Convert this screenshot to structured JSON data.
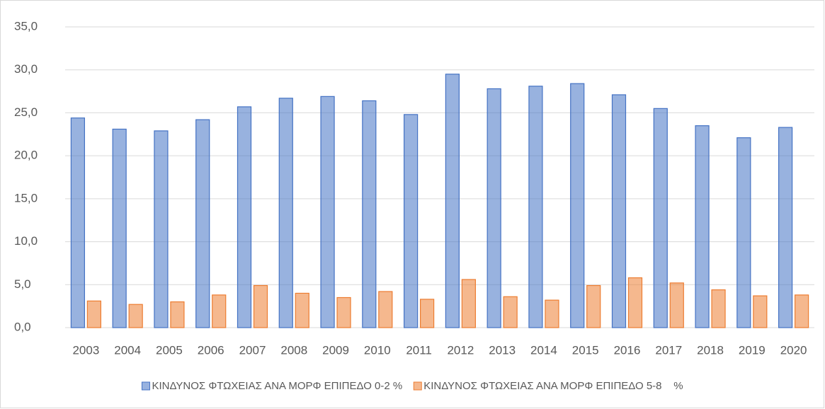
{
  "chart_data": {
    "type": "bar",
    "categories": [
      "2003",
      "2004",
      "2005",
      "2006",
      "2007",
      "2008",
      "2009",
      "2010",
      "2011",
      "2012",
      "2013",
      "2014",
      "2015",
      "2016",
      "2017",
      "2018",
      "2019",
      "2020"
    ],
    "series": [
      {
        "name": "ΚΙΝΔΥΝΟΣ ΦΤΩΧΕΙΑΣ ΑΝΑ ΜΟΡΦ ΕΠΙΠΕΔΟ 0-2 %",
        "color": "#4472c4",
        "values": [
          24.4,
          23.1,
          22.9,
          24.2,
          25.7,
          26.7,
          26.9,
          26.4,
          24.8,
          29.5,
          27.8,
          28.1,
          28.4,
          27.1,
          25.5,
          23.5,
          22.1,
          23.3
        ]
      },
      {
        "name": "ΚΙΝΔΥΝΟΣ ΦΤΩΧΕΙΑΣ ΑΝΑ ΜΟΡΦ ΕΠΙΠΕΔΟ 5-8    %",
        "color": "#ed7d31",
        "values": [
          3.1,
          2.7,
          3.0,
          3.8,
          4.9,
          4.0,
          3.5,
          4.2,
          3.3,
          5.6,
          3.6,
          3.2,
          4.9,
          5.8,
          5.2,
          4.4,
          3.7,
          3.8
        ]
      }
    ],
    "ylim": [
      0,
      35
    ],
    "yticks": [
      {
        "value": 0,
        "label": "0,0"
      },
      {
        "value": 5,
        "label": "5,0"
      },
      {
        "value": 10,
        "label": "10,0"
      },
      {
        "value": 15,
        "label": "15,0"
      },
      {
        "value": 20,
        "label": "20,0"
      },
      {
        "value": 25,
        "label": "25,0"
      },
      {
        "value": 30,
        "label": "30,0"
      },
      {
        "value": 35,
        "label": "35,0"
      }
    ],
    "grid": true,
    "legend": "bottom"
  }
}
